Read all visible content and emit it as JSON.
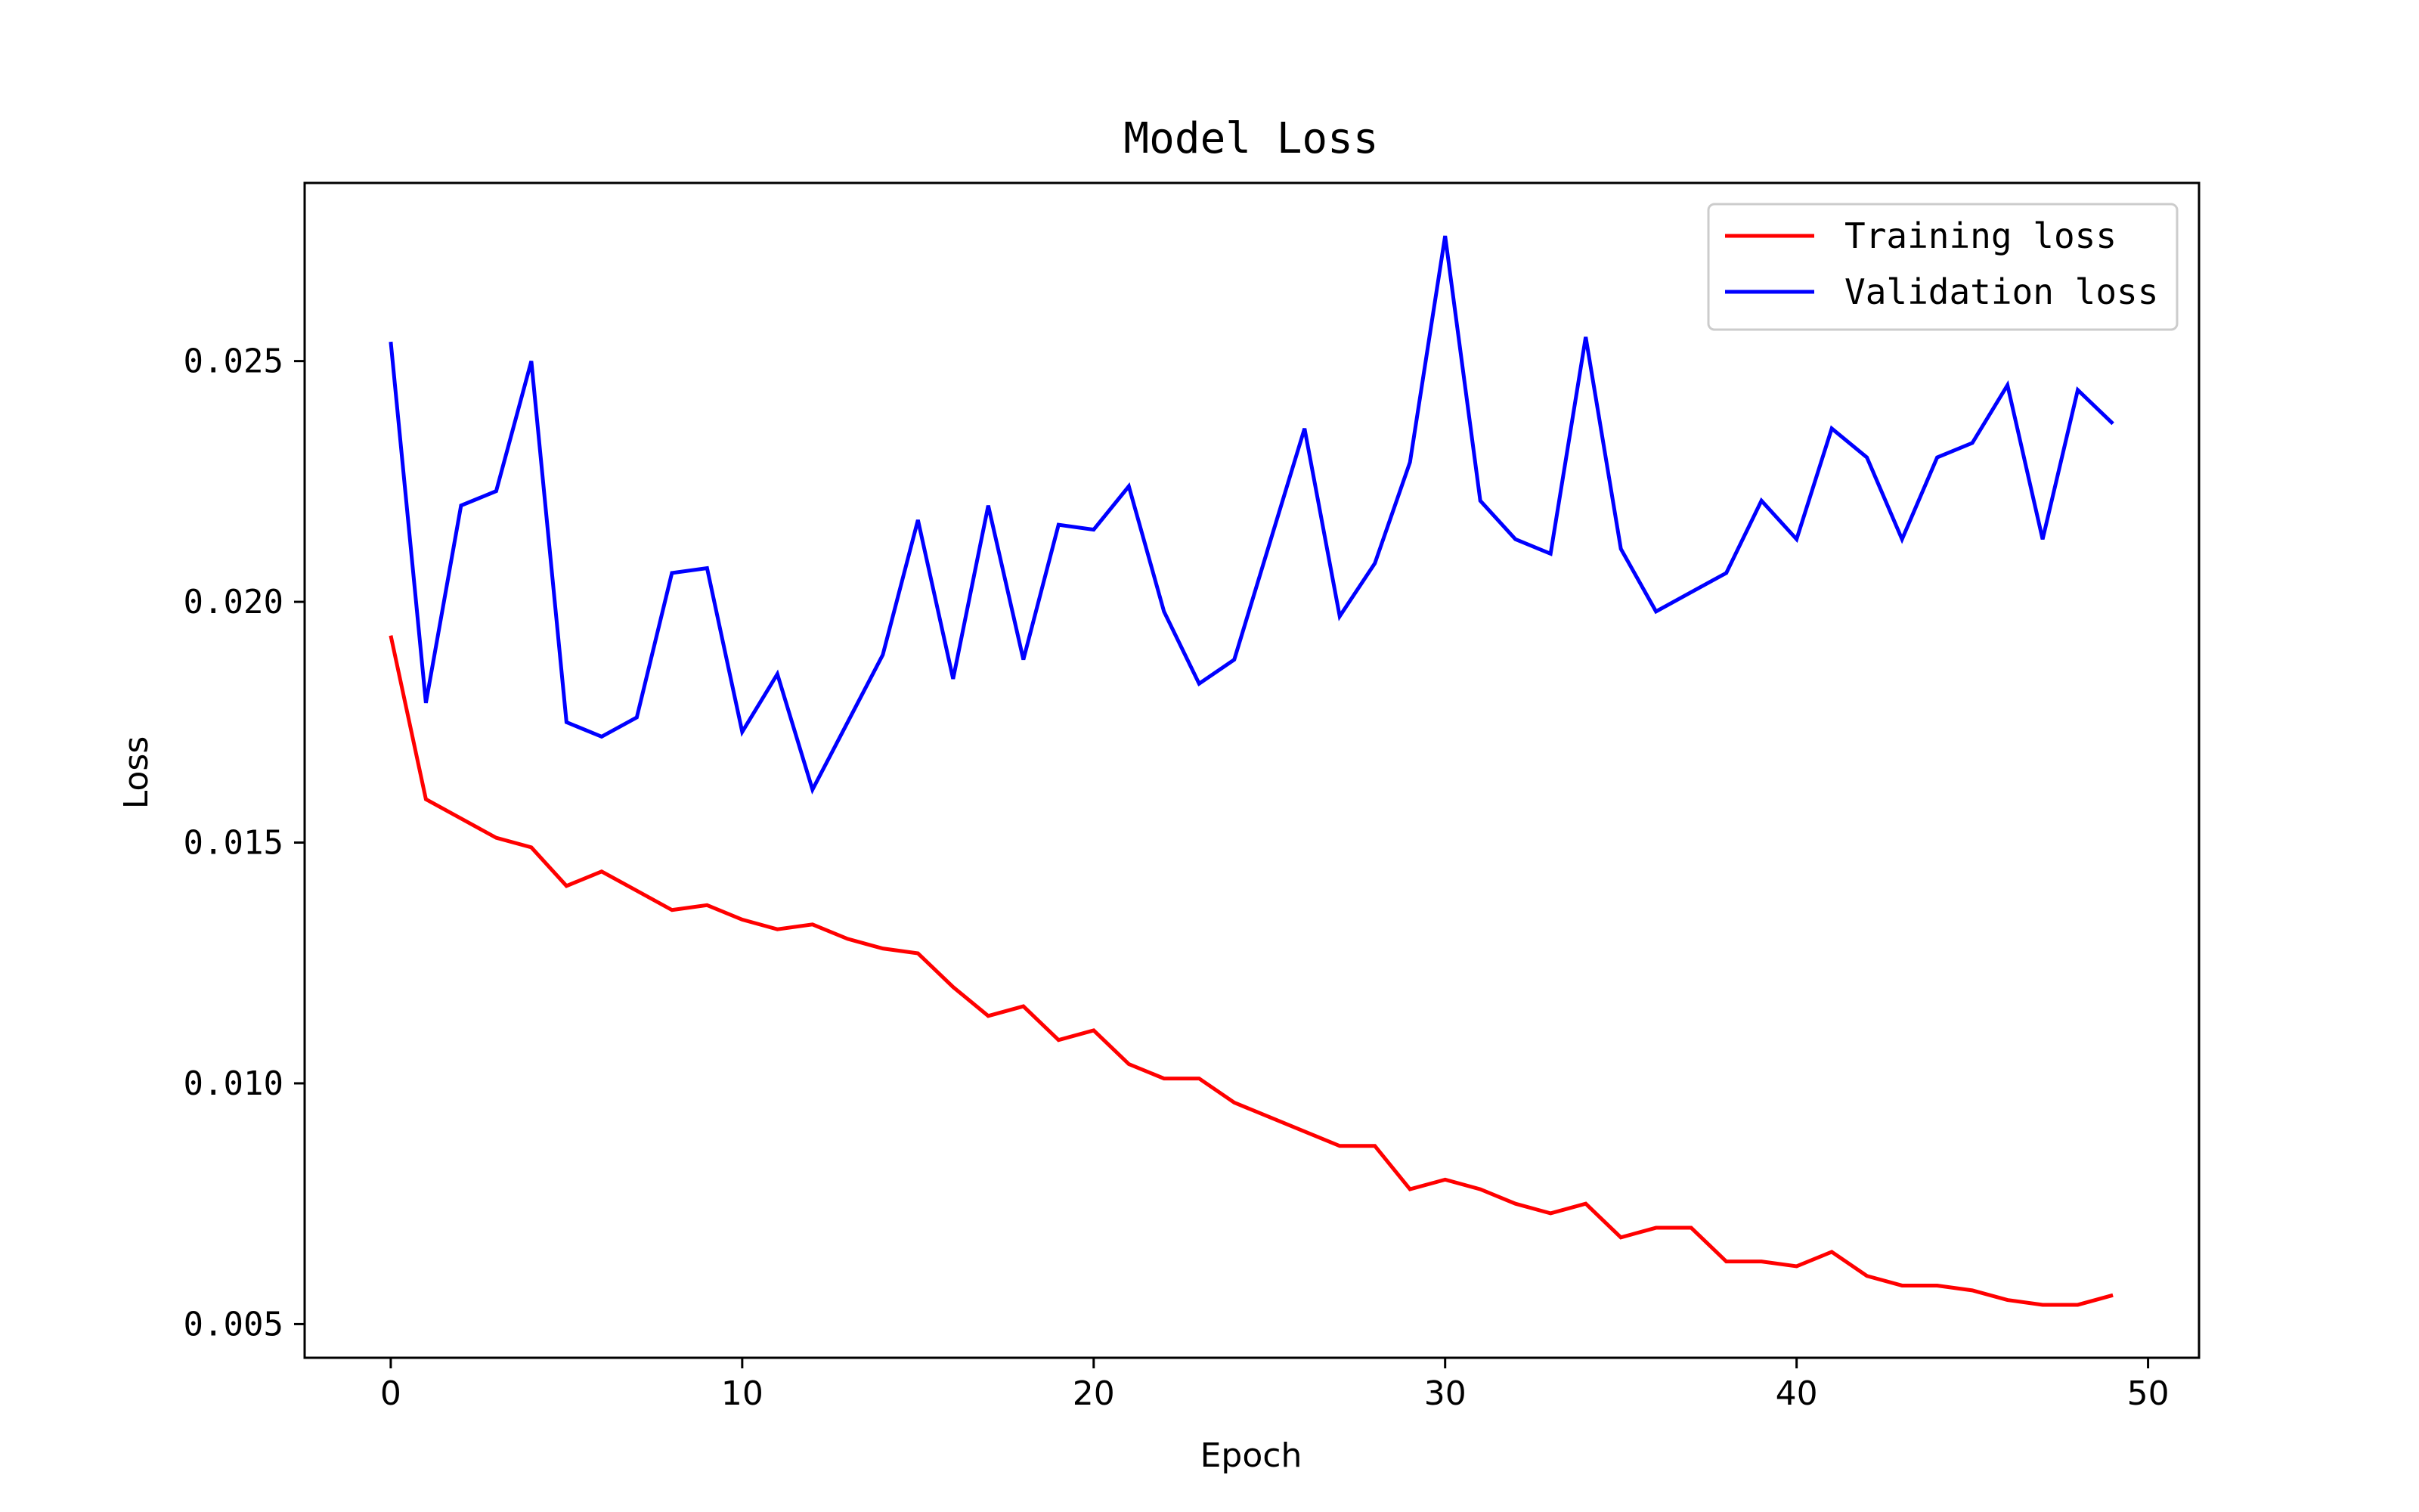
{
  "chart_data": {
    "type": "line",
    "title": "Model Loss",
    "xlabel": "Epoch",
    "ylabel": "Loss",
    "xlim": [
      -2.45,
      51.45
    ],
    "ylim": [
      0.0043,
      0.0287
    ],
    "xticks": [
      0,
      10,
      20,
      30,
      40,
      50
    ],
    "xtick_labels": [
      "0",
      "10",
      "20",
      "30",
      "40",
      "50"
    ],
    "yticks": [
      0.005,
      0.01,
      0.015,
      0.02,
      0.025
    ],
    "ytick_labels": [
      "0.005",
      "0.010",
      "0.015",
      "0.020",
      "0.025"
    ],
    "grid": false,
    "legend_position": "upper right",
    "x": [
      0,
      1,
      2,
      3,
      4,
      5,
      6,
      7,
      8,
      9,
      10,
      11,
      12,
      13,
      14,
      15,
      16,
      17,
      18,
      19,
      20,
      21,
      22,
      23,
      24,
      25,
      26,
      27,
      28,
      29,
      30,
      31,
      32,
      33,
      34,
      35,
      36,
      37,
      38,
      39,
      40,
      41,
      42,
      43,
      44,
      45,
      46,
      47,
      48,
      49
    ],
    "series": [
      {
        "name": "Training loss",
        "color": "#ff0000",
        "values": [
          0.0193,
          0.0159,
          0.0155,
          0.0151,
          0.0149,
          0.0141,
          0.0144,
          0.014,
          0.0136,
          0.0137,
          0.0134,
          0.0132,
          0.0133,
          0.013,
          0.0128,
          0.0127,
          0.012,
          0.0114,
          0.0116,
          0.0109,
          0.0111,
          0.0104,
          0.0101,
          0.0101,
          0.0096,
          0.0093,
          0.009,
          0.0087,
          0.0087,
          0.0078,
          0.008,
          0.0078,
          0.0075,
          0.0073,
          0.0075,
          0.0068,
          0.007,
          0.007,
          0.0063,
          0.0063,
          0.0062,
          0.0065,
          0.006,
          0.0058,
          0.0058,
          0.0057,
          0.0055,
          0.0054,
          0.0054,
          0.0056
        ]
      },
      {
        "name": "Validation loss",
        "color": "#0000ff",
        "values": [
          0.0254,
          0.0179,
          0.022,
          0.0223,
          0.025,
          0.0175,
          0.0172,
          0.0176,
          0.0206,
          0.0207,
          0.0173,
          0.0185,
          0.0161,
          0.0175,
          0.0189,
          0.0217,
          0.0184,
          0.022,
          0.0188,
          0.0216,
          0.0215,
          0.0224,
          0.0198,
          0.0183,
          0.0188,
          0.0212,
          0.0236,
          0.0197,
          0.0208,
          0.0229,
          0.0276,
          0.0221,
          0.0213,
          0.021,
          0.0255,
          0.0211,
          0.0198,
          0.0202,
          0.0206,
          0.0221,
          0.0213,
          0.0236,
          0.023,
          0.0213,
          0.023,
          0.0233,
          0.0245,
          0.0213,
          0.0244,
          0.0237
        ]
      }
    ]
  }
}
